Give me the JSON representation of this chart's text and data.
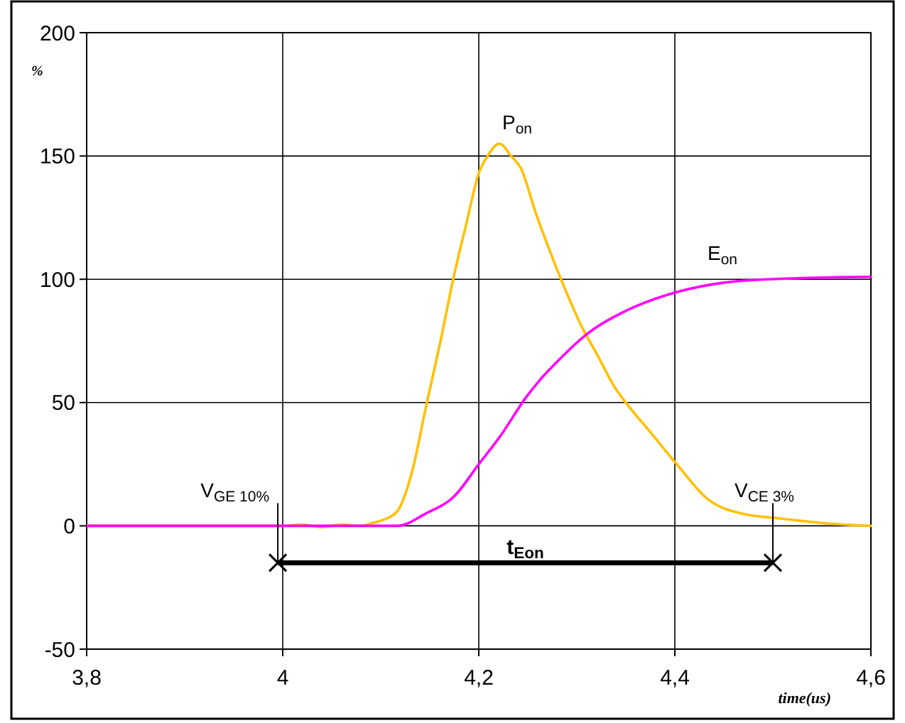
{
  "chart_data": {
    "type": "line",
    "xlabel": "time(us)",
    "ylabel": "%",
    "xlim": [
      3.8,
      4.6
    ],
    "ylim": [
      -50,
      200
    ],
    "xticks": [
      {
        "value": 3.8,
        "label": "3,8"
      },
      4,
      {
        "value": 4.2,
        "label": "4,2"
      },
      {
        "value": 4.4,
        "label": "4,4"
      },
      {
        "value": 4.6,
        "label": "4,6"
      }
    ],
    "yticks": [
      -50,
      0,
      50,
      100,
      150,
      200
    ],
    "grid": true,
    "marker": "none",
    "line_style": "solid",
    "series": [
      {
        "name": "P$_{on}$",
        "color": "#ffc000",
        "x": [
          3.8,
          4.0,
          4.02,
          4.04,
          4.06,
          4.08,
          4.09,
          4.103,
          4.117,
          4.132,
          4.146,
          4.161,
          4.175,
          4.187,
          4.2,
          4.209,
          4.221,
          4.233,
          4.243,
          4.258,
          4.272,
          4.287,
          4.306,
          4.32,
          4.339,
          4.35,
          4.375,
          4.404,
          4.433,
          4.468,
          4.507,
          4.555,
          4.6
        ],
        "values": [
          0,
          0,
          0.5,
          -0.5,
          0.5,
          0,
          1,
          2.5,
          6,
          22,
          48,
          75,
          102,
          122,
          143,
          150,
          155,
          150,
          145,
          127,
          112,
          97,
          80,
          70,
          56,
          50,
          38,
          24,
          11,
          5,
          3,
          1,
          0
        ]
      },
      {
        "name": "E$_{on}$",
        "color": "#ff00ff",
        "x": [
          3.8,
          4.0,
          4.1,
          4.117,
          4.146,
          4.175,
          4.2,
          4.223,
          4.248,
          4.262,
          4.281,
          4.311,
          4.349,
          4.36,
          4.404,
          4.458,
          4.531,
          4.6
        ],
        "values": [
          0,
          0,
          0,
          0,
          5,
          12,
          25,
          37,
          52,
          59,
          67,
          78,
          87,
          89,
          95,
          99,
          100.5,
          101
        ]
      }
    ],
    "annotations": [
      {
        "text": "V$_{GE 10%}$",
        "x": 3.995,
        "y": 0
      },
      {
        "text": "V$_{CE 3%}$",
        "x": 4.5,
        "y": 0
      },
      "t$_{Eon}$"
    ]
  }
}
